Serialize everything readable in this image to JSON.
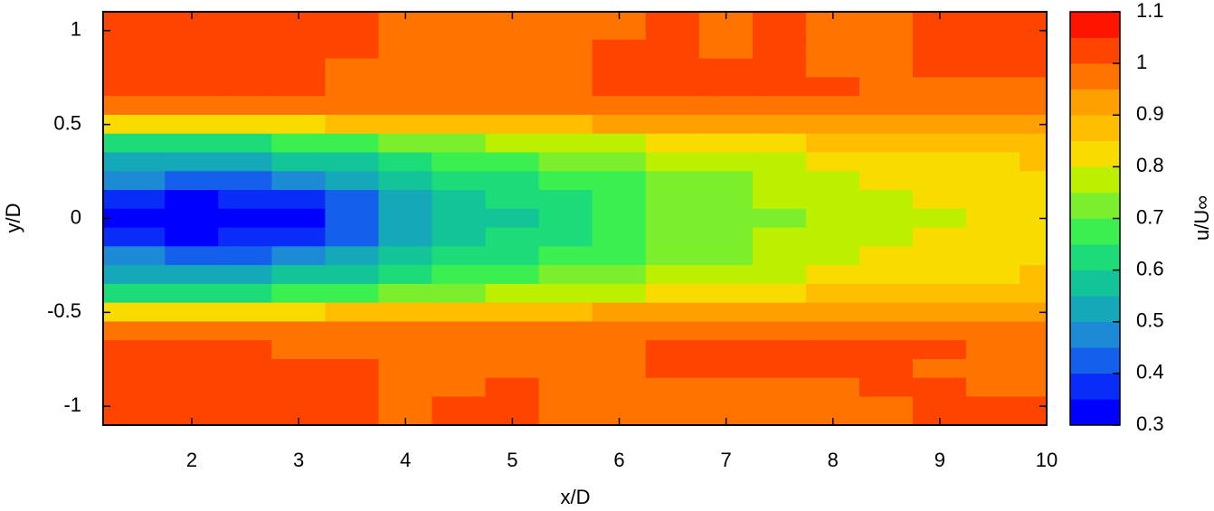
{
  "chart_data": {
    "type": "contour",
    "xlabel": "x/D",
    "ylabel": "y/D",
    "colorbar_label": "u/U∞",
    "xlim": [
      1.17,
      10
    ],
    "ylim": [
      -1.1,
      1.1
    ],
    "xticks": [
      2,
      3,
      4,
      5,
      6,
      7,
      8,
      9,
      10
    ],
    "yticks": [
      -1,
      -0.5,
      0,
      0.5,
      1
    ],
    "x": [
      1.5,
      2,
      2.5,
      3,
      3.5,
      4,
      4.5,
      5,
      5.5,
      6,
      6.5,
      7,
      7.5,
      8,
      8.5,
      9,
      9.5,
      10
    ],
    "y": [
      1.1,
      1.0,
      0.9,
      0.8,
      0.7,
      0.6,
      0.5,
      0.4,
      0.3,
      0.2,
      0.1,
      0,
      -0.1,
      -0.2,
      -0.3,
      -0.4,
      -0.5,
      -0.6,
      -0.7,
      -0.8,
      -0.9,
      -1.0,
      -1.1
    ],
    "z": [
      [
        1.02,
        1.02,
        1.02,
        1.02,
        1.02,
        0.98,
        0.98,
        0.98,
        0.98,
        0.98,
        1.02,
        0.98,
        1.02,
        0.98,
        0.98,
        1.02,
        1.02,
        1.02
      ],
      [
        1.02,
        1.02,
        1.02,
        1.02,
        1.02,
        0.98,
        0.98,
        0.98,
        0.98,
        0.98,
        1.02,
        0.98,
        1.02,
        0.98,
        0.98,
        1.02,
        1.02,
        1.02
      ],
      [
        1.02,
        1.02,
        1.02,
        1.02,
        1.02,
        0.98,
        0.98,
        0.98,
        0.98,
        1.02,
        1.02,
        0.98,
        1.02,
        0.98,
        0.98,
        1.02,
        1.02,
        1.02
      ],
      [
        1.02,
        1.02,
        1.02,
        1.02,
        0.98,
        0.98,
        0.98,
        0.98,
        0.98,
        1.02,
        1.02,
        1.02,
        1.02,
        0.98,
        0.98,
        1.02,
        1.02,
        1.02
      ],
      [
        1.02,
        1.02,
        1.02,
        1.02,
        0.98,
        0.98,
        0.98,
        0.98,
        0.98,
        1.02,
        1.02,
        1.02,
        1.02,
        1.02,
        0.98,
        0.98,
        0.98,
        0.98
      ],
      [
        0.97,
        0.97,
        0.97,
        0.97,
        0.97,
        0.97,
        0.97,
        0.97,
        0.97,
        0.98,
        0.98,
        0.98,
        0.98,
        0.98,
        0.98,
        0.98,
        0.97,
        0.96
      ],
      [
        0.82,
        0.82,
        0.83,
        0.84,
        0.85,
        0.86,
        0.87,
        0.88,
        0.89,
        0.9,
        0.91,
        0.92,
        0.92,
        0.93,
        0.93,
        0.93,
        0.93,
        0.92
      ],
      [
        0.62,
        0.62,
        0.64,
        0.66,
        0.68,
        0.71,
        0.73,
        0.75,
        0.77,
        0.79,
        0.81,
        0.83,
        0.84,
        0.85,
        0.86,
        0.87,
        0.88,
        0.88
      ],
      [
        0.52,
        0.5,
        0.52,
        0.55,
        0.58,
        0.62,
        0.65,
        0.68,
        0.7,
        0.72,
        0.75,
        0.77,
        0.79,
        0.8,
        0.82,
        0.83,
        0.84,
        0.85
      ],
      [
        0.45,
        0.42,
        0.42,
        0.45,
        0.5,
        0.55,
        0.6,
        0.63,
        0.67,
        0.69,
        0.72,
        0.74,
        0.76,
        0.78,
        0.8,
        0.81,
        0.82,
        0.83
      ],
      [
        0.35,
        0.33,
        0.35,
        0.38,
        0.44,
        0.51,
        0.57,
        0.6,
        0.64,
        0.67,
        0.71,
        0.73,
        0.75,
        0.77,
        0.79,
        0.8,
        0.81,
        0.82
      ],
      [
        0.3,
        0.3,
        0.3,
        0.33,
        0.42,
        0.5,
        0.56,
        0.58,
        0.63,
        0.66,
        0.7,
        0.72,
        0.74,
        0.76,
        0.78,
        0.79,
        0.81,
        0.82
      ],
      [
        0.35,
        0.33,
        0.35,
        0.38,
        0.44,
        0.51,
        0.57,
        0.6,
        0.64,
        0.67,
        0.71,
        0.73,
        0.75,
        0.77,
        0.79,
        0.8,
        0.81,
        0.82
      ],
      [
        0.45,
        0.42,
        0.42,
        0.45,
        0.5,
        0.55,
        0.6,
        0.63,
        0.67,
        0.69,
        0.72,
        0.74,
        0.76,
        0.78,
        0.8,
        0.81,
        0.82,
        0.83
      ],
      [
        0.52,
        0.5,
        0.52,
        0.55,
        0.58,
        0.62,
        0.65,
        0.68,
        0.7,
        0.72,
        0.75,
        0.77,
        0.79,
        0.8,
        0.82,
        0.83,
        0.84,
        0.85
      ],
      [
        0.62,
        0.62,
        0.64,
        0.66,
        0.68,
        0.71,
        0.73,
        0.75,
        0.77,
        0.79,
        0.81,
        0.83,
        0.84,
        0.85,
        0.86,
        0.87,
        0.88,
        0.88
      ],
      [
        0.82,
        0.82,
        0.83,
        0.84,
        0.85,
        0.86,
        0.87,
        0.88,
        0.89,
        0.9,
        0.91,
        0.92,
        0.92,
        0.93,
        0.93,
        0.93,
        0.93,
        0.92
      ],
      [
        0.97,
        0.97,
        0.97,
        0.97,
        0.97,
        0.97,
        0.97,
        0.97,
        0.97,
        0.98,
        0.98,
        0.98,
        0.98,
        0.98,
        0.98,
        0.98,
        0.97,
        0.96
      ],
      [
        1.02,
        1.02,
        1.02,
        0.98,
        0.98,
        0.98,
        0.98,
        0.98,
        0.98,
        0.98,
        1.02,
        1.02,
        1.02,
        1.02,
        1.02,
        1.02,
        0.98,
        0.98
      ],
      [
        1.02,
        1.02,
        1.02,
        1.02,
        1.02,
        0.98,
        0.98,
        0.98,
        0.98,
        0.98,
        1.02,
        1.02,
        1.02,
        1.02,
        1.02,
        0.98,
        0.98,
        0.98
      ],
      [
        1.02,
        1.02,
        1.02,
        1.02,
        1.02,
        0.98,
        0.98,
        1.02,
        0.98,
        0.98,
        0.98,
        0.98,
        0.98,
        0.98,
        1.02,
        1.02,
        0.98,
        0.98
      ],
      [
        1.02,
        1.02,
        1.02,
        1.02,
        1.02,
        0.98,
        1.02,
        1.02,
        0.98,
        0.98,
        0.98,
        0.98,
        0.98,
        0.98,
        0.98,
        1.02,
        1.02,
        1.02
      ],
      [
        1.02,
        1.02,
        1.02,
        1.02,
        1.02,
        0.98,
        1.02,
        1.02,
        0.98,
        0.98,
        0.98,
        0.98,
        0.98,
        0.98,
        0.98,
        1.02,
        1.02,
        1.02
      ]
    ],
    "levels": [
      0.3,
      0.35,
      0.4,
      0.45,
      0.5,
      0.55,
      0.6,
      0.65,
      0.7,
      0.75,
      0.8,
      0.85,
      0.9,
      0.95,
      1.0,
      1.05,
      1.1
    ],
    "colors": [
      "#0000ff",
      "#0a2cf8",
      "#1560ea",
      "#1c8ad4",
      "#14a8b8",
      "#12c498",
      "#1cdc78",
      "#3cef50",
      "#7cef2c",
      "#bcef00",
      "#f8dc00",
      "#ffbe00",
      "#ffa000",
      "#ff7400",
      "#ff4400",
      "#ff1400"
    ],
    "colorbar_ticks": [
      0.3,
      0.4,
      0.5,
      0.6,
      0.7,
      0.8,
      0.9,
      1,
      1.1
    ]
  }
}
